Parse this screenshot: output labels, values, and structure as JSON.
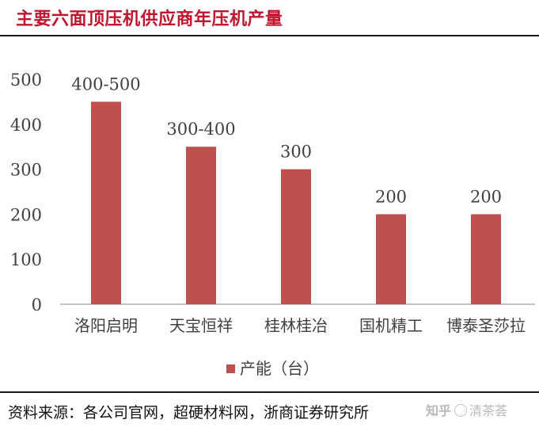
{
  "title": "主要六面顶压机供应商年压机产量",
  "source": "资料来源：各公司官网，超硬材料网，浙商证券研究所",
  "watermark": {
    "logo": "知乎",
    "author": "清茶荟"
  },
  "colors": {
    "bar": "#c0504d",
    "title": "#c0152f",
    "axis": "#888888",
    "tick_text": "#404040"
  },
  "chart_data": {
    "type": "bar",
    "title": "主要六面顶压机供应商年压机产量",
    "categories": [
      "洛阳启明",
      "天宝恒祥",
      "桂林桂冶",
      "国机精工",
      "博泰圣莎拉"
    ],
    "series": [
      {
        "name": "产能（台）",
        "values": [
          450,
          350,
          300,
          200,
          200
        ],
        "labels": [
          "400-500",
          "300-400",
          "300",
          "200",
          "200"
        ]
      }
    ],
    "xlabel": "",
    "ylabel": "",
    "ylim": [
      0,
      500
    ],
    "yticks": [
      0,
      100,
      200,
      300,
      400,
      500
    ],
    "grid": false,
    "legend_position": "bottom"
  }
}
